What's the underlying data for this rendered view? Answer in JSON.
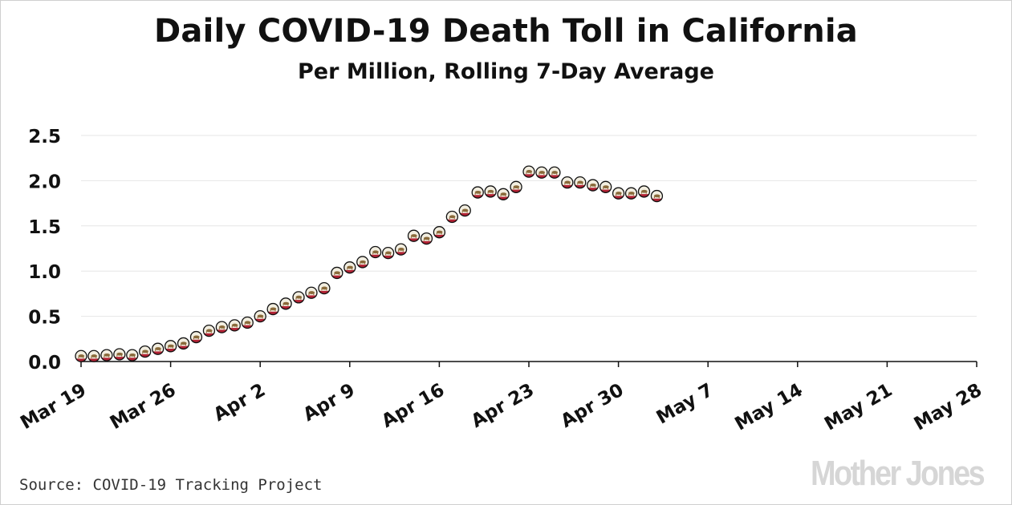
{
  "header": {
    "title": "Daily COVID-19 Death Toll in California",
    "subtitle": "Per Million, Rolling 7-Day Average"
  },
  "footer": {
    "source": "Source: COVID-19 Tracking Project",
    "brand": "Mother Jones"
  },
  "colors": {
    "axis": "#111111",
    "grid": "#e6e6e6",
    "marker_fill": "#f2eee0",
    "marker_outline": "#111111",
    "marker_bear": "#8a6a3a",
    "marker_stripe": "#b22234"
  },
  "chart_data": {
    "type": "scatter",
    "title": "Daily COVID-19 Death Toll in California",
    "subtitle": "Per Million, Rolling 7-Day Average",
    "xlabel": "",
    "ylabel": "",
    "x_axis": {
      "start": "2020-03-19",
      "end": "2020-05-28",
      "tick_labels": [
        "Mar 19",
        "Mar 26",
        "Apr 2",
        "Apr 9",
        "Apr 16",
        "Apr 23",
        "Apr 30",
        "May 7",
        "May 14",
        "May 21",
        "May 28"
      ]
    },
    "y_axis": {
      "ylim": [
        0,
        2.5
      ],
      "tick_labels": [
        "0.0",
        "0.5",
        "1.0",
        "1.5",
        "2.0",
        "2.5"
      ]
    },
    "grid": "horizontal",
    "marker": "California state flag icon",
    "series": [
      {
        "x": [
          "2020-03-19",
          "2020-03-20",
          "2020-03-21",
          "2020-03-22",
          "2020-03-23",
          "2020-03-24",
          "2020-03-25",
          "2020-03-26",
          "2020-03-27",
          "2020-03-28",
          "2020-03-29",
          "2020-03-30",
          "2020-03-31",
          "2020-04-01",
          "2020-04-02",
          "2020-04-03",
          "2020-04-04",
          "2020-04-05",
          "2020-04-06",
          "2020-04-07",
          "2020-04-08",
          "2020-04-09",
          "2020-04-10",
          "2020-04-11",
          "2020-04-12",
          "2020-04-13",
          "2020-04-14",
          "2020-04-15",
          "2020-04-16",
          "2020-04-17",
          "2020-04-18",
          "2020-04-19",
          "2020-04-20",
          "2020-04-21",
          "2020-04-22",
          "2020-04-23",
          "2020-04-24",
          "2020-04-25",
          "2020-04-26",
          "2020-04-27",
          "2020-04-28",
          "2020-04-29",
          "2020-04-30",
          "2020-05-01",
          "2020-05-02",
          "2020-05-03"
        ],
        "values": [
          0.06,
          0.06,
          0.07,
          0.08,
          0.07,
          0.11,
          0.14,
          0.17,
          0.2,
          0.27,
          0.34,
          0.38,
          0.4,
          0.43,
          0.5,
          0.58,
          0.64,
          0.71,
          0.76,
          0.81,
          0.98,
          1.04,
          1.1,
          1.21,
          1.2,
          1.24,
          1.39,
          1.36,
          1.43,
          1.6,
          1.67,
          1.87,
          1.88,
          1.85,
          1.93,
          2.1,
          2.09,
          2.09,
          1.98,
          1.98,
          1.95,
          1.93,
          1.86,
          1.86,
          1.88,
          1.83
        ]
      }
    ]
  }
}
